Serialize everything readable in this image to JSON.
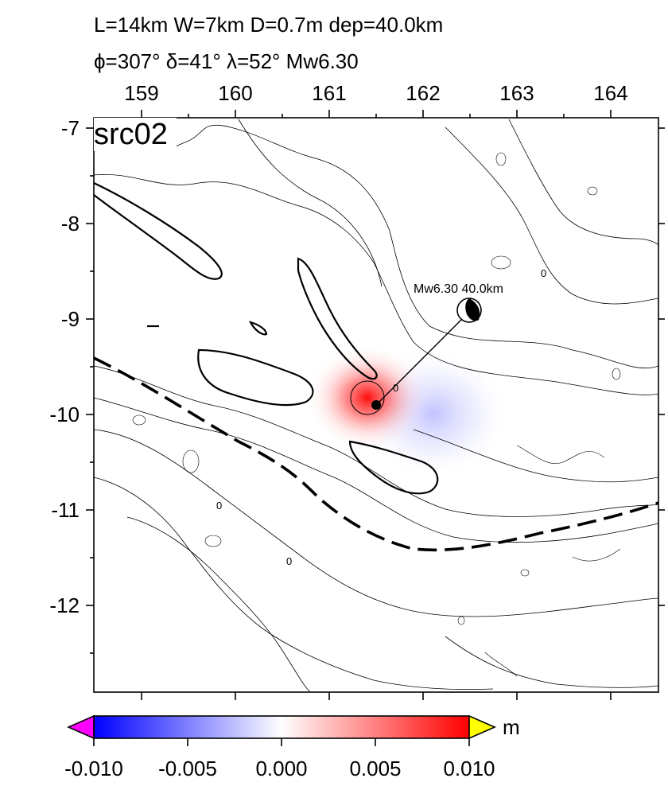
{
  "header": {
    "line1": "L=14km W=7km D=0.7m dep=40.0km",
    "line2": "ϕ=307° δ=41° λ=52° Mw6.30"
  },
  "map": {
    "panel_label": "src02",
    "lon_ticks": [
      "159",
      "160",
      "161",
      "162",
      "163",
      "164"
    ],
    "lat_ticks": [
      "-7",
      "-8",
      "-9",
      "-10",
      "-11",
      "-12"
    ],
    "lon_range": [
      158.5,
      164.5
    ],
    "lat_range": [
      -12.9,
      -7.0
    ],
    "event_label": "Mw6.30  40.0km",
    "event_location": {
      "lon": 162.5,
      "lat": -8.9
    },
    "source_location": {
      "lon": 161.5,
      "lat": -9.9
    },
    "contour_labels": [
      "0",
      "0",
      "0",
      "0"
    ]
  },
  "colorbar": {
    "unit": "m",
    "tick_labels": [
      "-0.010",
      "-0.005",
      "0.000",
      "0.005",
      "0.010"
    ],
    "range": [
      -0.01,
      0.01
    ],
    "colors": {
      "min": "#0000ff",
      "mid": "#ffffff",
      "max": "#ff0000",
      "under": "#ff00ff",
      "over": "#ffff00"
    }
  }
}
